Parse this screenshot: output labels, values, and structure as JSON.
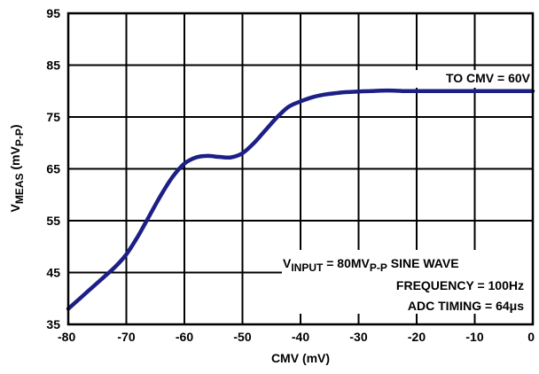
{
  "chart_data": {
    "type": "line",
    "xlabel": "CMV (mV)",
    "ylabel": {
      "main": "V",
      "sub": "MEAS",
      "rest": " (mV",
      "sub2": "P-P",
      "close": ")"
    },
    "xlim": [
      -80,
      0
    ],
    "ylim": [
      35,
      95
    ],
    "x_ticks": [
      -80,
      -70,
      -60,
      -50,
      -40,
      -30,
      -20,
      -10,
      0
    ],
    "y_ticks": [
      35,
      45,
      55,
      65,
      75,
      85,
      95
    ],
    "grid": true,
    "series": [
      {
        "color": "#1c1f85",
        "x": [
          -80,
          -78,
          -76,
          -74,
          -72,
          -70,
          -68,
          -66,
          -64,
          -62,
          -60,
          -58,
          -56,
          -54,
          -52,
          -50,
          -48,
          -46,
          -44,
          -42,
          -40,
          -38,
          -36,
          -34,
          -32,
          -30,
          -28,
          -26,
          -24,
          -22,
          -20,
          -15,
          -10,
          -5,
          0
        ],
        "y": [
          38,
          40,
          42,
          44,
          46,
          48.5,
          52,
          56,
          60,
          63.5,
          66,
          67.2,
          67.5,
          67.3,
          67.2,
          68,
          70,
          72.5,
          75,
          77,
          78,
          78.8,
          79.3,
          79.6,
          79.8,
          79.9,
          80,
          80.1,
          80.1,
          80,
          80,
          80,
          80,
          80,
          80
        ]
      }
    ],
    "annotations": {
      "top": "TO CMV = 60V",
      "input": {
        "pre": "V",
        "sub1": "INPUT",
        "mid": " = 80MV",
        "sub2": "P-P",
        "post": " SINE WAVE"
      },
      "frequency": "FREQUENCY = 100Hz",
      "adc": "ADC TIMING = 64μs"
    }
  }
}
